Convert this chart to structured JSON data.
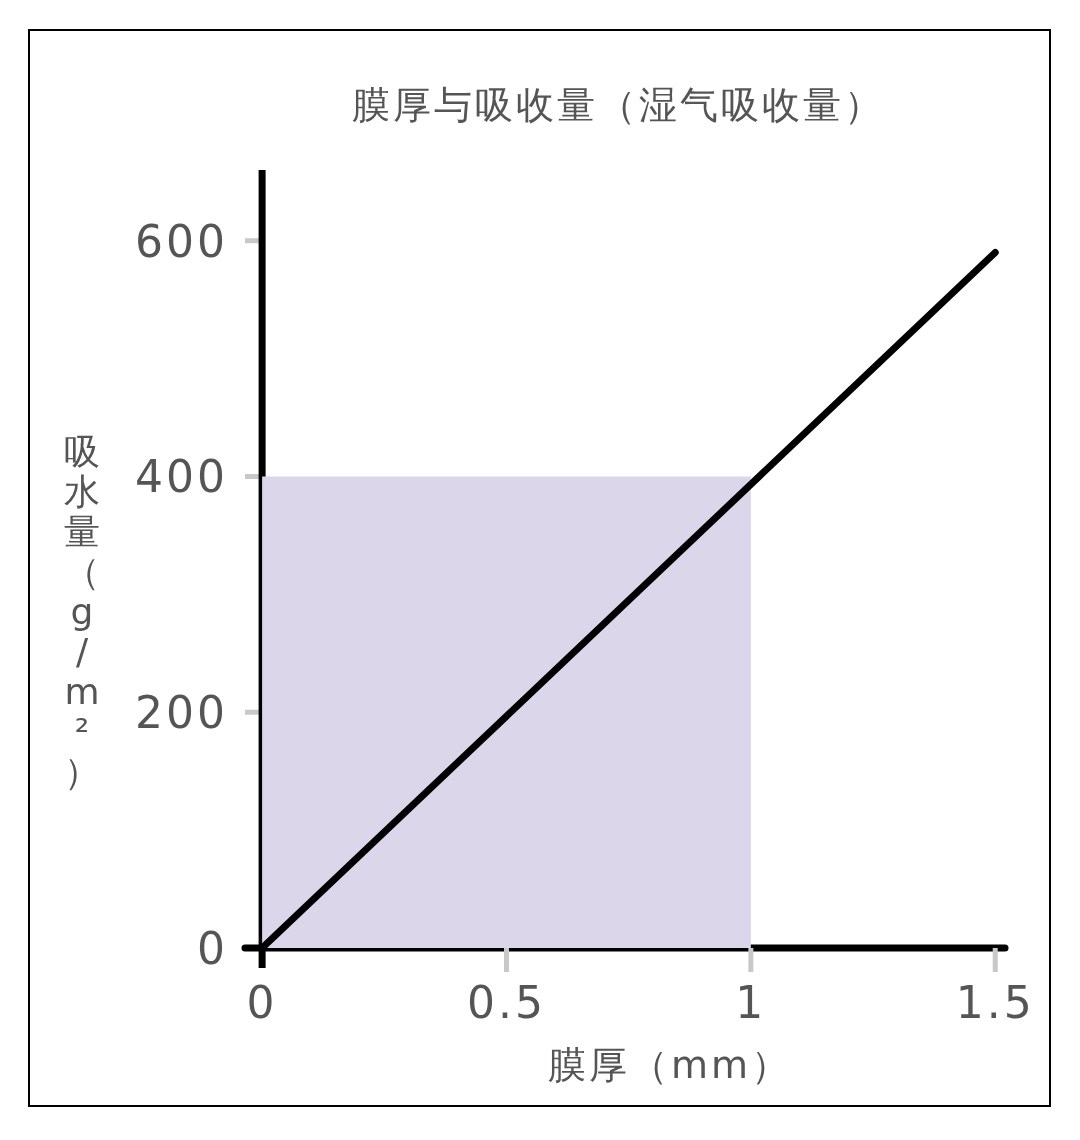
{
  "chart_data": {
    "type": "line",
    "title": "膜厚与吸收量（湿气吸收量）",
    "xlabel": "膜厚（mm）",
    "ylabel": "吸水量（g/m²）",
    "xlim": [
      -0.035,
      1.52
    ],
    "ylim": [
      -17,
      660
    ],
    "xticks": [
      0,
      0.5,
      1,
      1.5
    ],
    "yticks": [
      0,
      200,
      400,
      600
    ],
    "series": [
      {
        "type": "area",
        "color": "#dcd6ea",
        "x": [
          0,
          1
        ],
        "values": [
          400,
          400
        ]
      },
      {
        "type": "line",
        "color": "#000000",
        "x": [
          0,
          1.5
        ],
        "values": [
          0,
          590
        ]
      }
    ]
  }
}
